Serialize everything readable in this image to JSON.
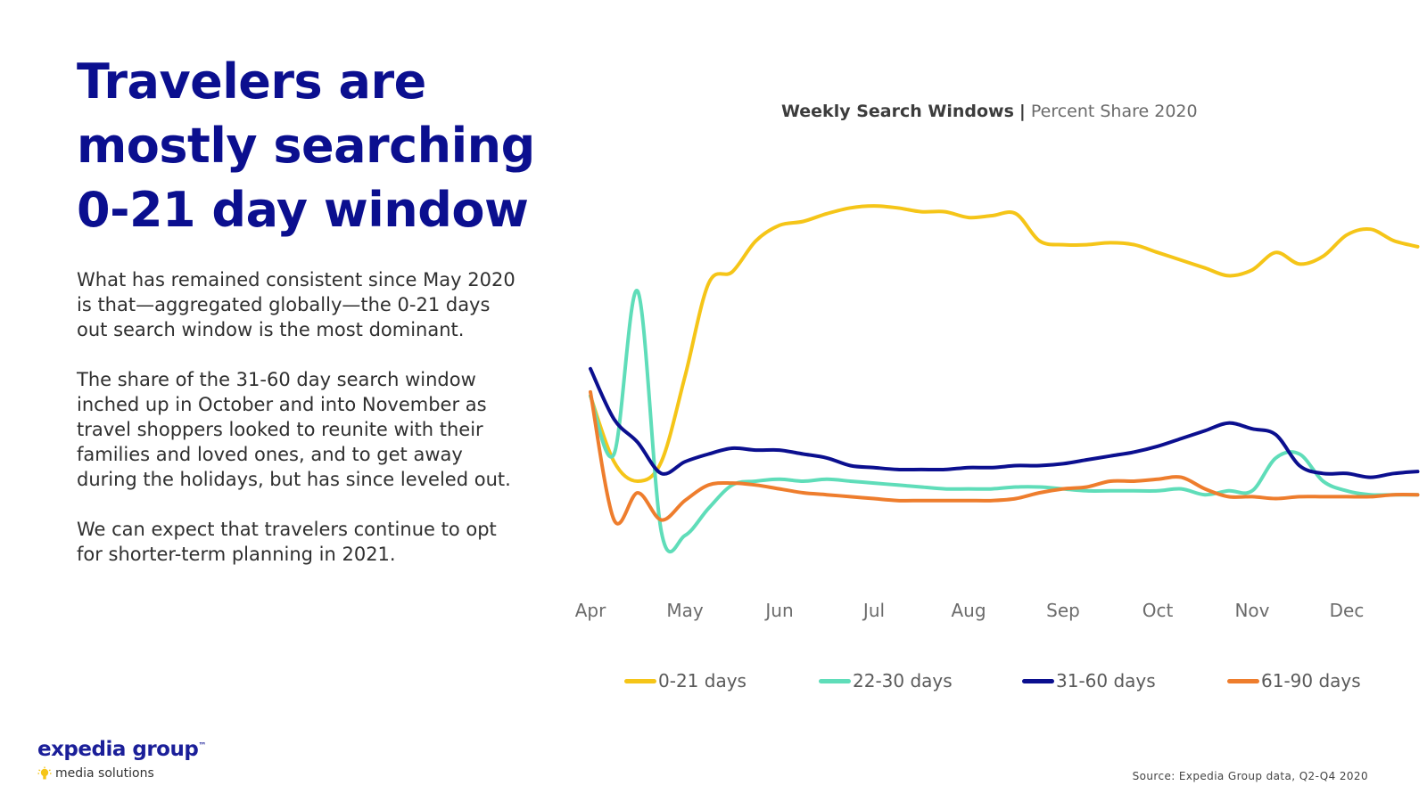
{
  "headline": {
    "line1": "Travelers are",
    "line2": "mostly searching",
    "line3": "0-21 day window"
  },
  "body": {
    "p1": "What has remained consistent since May 2020 is that—aggregated globally—the 0-21 days out search window is the most dominant.",
    "p2": "The share of the 31-60 day search window inched up in October and into November as travel shoppers looked to reunite with their families and loved ones, and to get away during the holidays, but has since leveled out.",
    "p3": "We can expect that travelers continue to opt for shorter-term planning in 2021."
  },
  "chart_data": {
    "type": "line",
    "title": "Weekly Search Windows",
    "subtitle": "Percent Share 2020",
    "xlabel": "",
    "ylabel": "",
    "grid": false,
    "x": [
      0,
      0.25,
      0.5,
      0.75,
      1,
      1.25,
      1.5,
      1.75,
      2,
      2.25,
      2.5,
      2.75,
      3,
      3.25,
      3.5,
      3.75,
      4,
      4.25,
      4.5,
      4.75,
      5,
      5.25,
      5.5,
      5.75,
      6,
      6.25,
      6.5,
      6.75,
      7,
      7.25,
      7.5,
      7.75,
      8,
      8.25,
      8.5,
      8.75
    ],
    "x_tick_positions": [
      0,
      1,
      2,
      3,
      4,
      5,
      6,
      7,
      8
    ],
    "x_tick_labels": [
      "Apr",
      "May",
      "Jun",
      "Jul",
      "Aug",
      "Sep",
      "Oct",
      "Nov",
      "Dec"
    ],
    "ylim": [
      0,
      100
    ],
    "series": [
      {
        "name": "0-21 days",
        "color": "#f5c518",
        "values": [
          45,
          28,
          23,
          28,
          50,
          74,
          77,
          85,
          89,
          90,
          92,
          93.5,
          94,
          93.5,
          92.5,
          92.5,
          91,
          91.5,
          92,
          85,
          84,
          84,
          84.5,
          84,
          82,
          80,
          78,
          76,
          77.5,
          82,
          79,
          81,
          86.5,
          88,
          85,
          83.5
        ]
      },
      {
        "name": "22-30 days",
        "color": "#5fddb9",
        "values": [
          45,
          30,
          72,
          10,
          9,
          16,
          22,
          23,
          23.5,
          23,
          23.5,
          23,
          22.5,
          22,
          21.5,
          21,
          21,
          21,
          21.5,
          21.5,
          21,
          20.5,
          20.5,
          20.5,
          20.5,
          21,
          19.5,
          20.5,
          20.5,
          29,
          30,
          23,
          20.5,
          19.5,
          19.5,
          19.5
        ]
      },
      {
        "name": "31-60 days",
        "color": "#0b0f8f",
        "values": [
          52,
          39,
          33,
          25,
          28,
          30,
          31.5,
          31,
          31,
          30,
          29,
          27,
          26.5,
          26,
          26,
          26,
          26.5,
          26.5,
          27,
          27,
          27.5,
          28.5,
          29.5,
          30.5,
          32,
          34,
          36,
          38,
          36.5,
          35,
          27,
          25,
          25,
          24,
          25,
          25.5
        ]
      },
      {
        "name": "61-90 days",
        "color": "#ee7d2d",
        "values": [
          46,
          13,
          20,
          13,
          18,
          22,
          22.5,
          22,
          21,
          20,
          19.5,
          19,
          18.5,
          18,
          18,
          18,
          18,
          18,
          18.5,
          20,
          21,
          21.5,
          23,
          23,
          23.5,
          24,
          21,
          19,
          19,
          18.5,
          19,
          19,
          19,
          19,
          19.5,
          19.5
        ]
      }
    ]
  },
  "logo": {
    "wordmark": "expedia group",
    "trademark": "™",
    "tagline": "media solutions"
  },
  "source": "Source: Expedia Group data, Q2-Q4 2020"
}
